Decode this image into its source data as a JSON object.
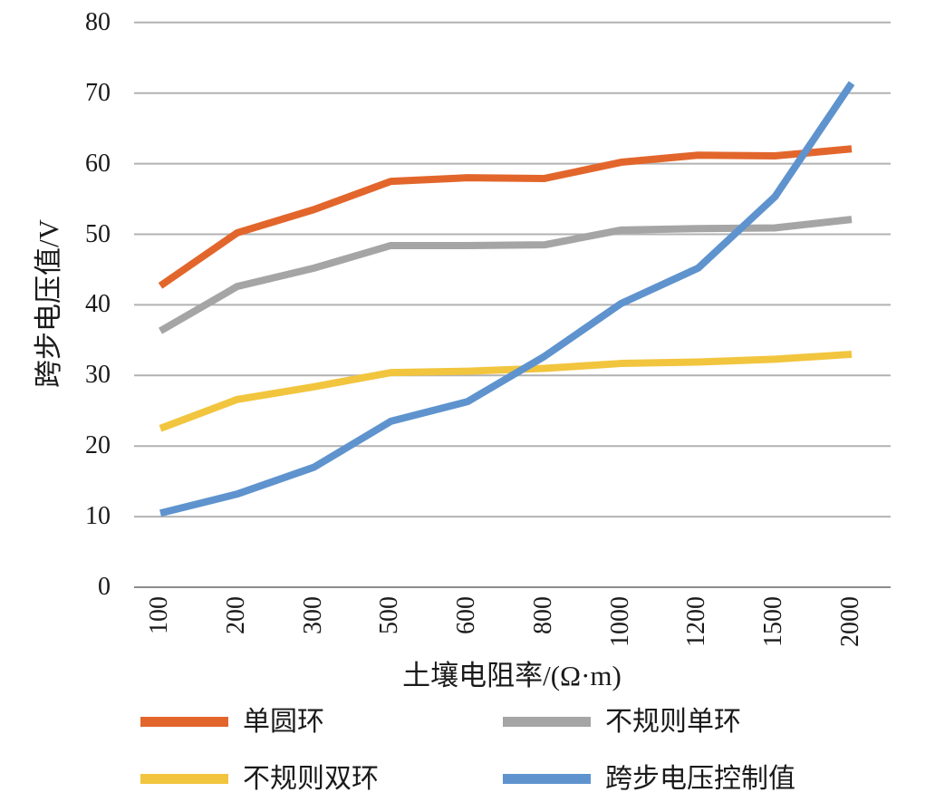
{
  "chart_data": {
    "type": "line",
    "title": "",
    "xlabel": "土壤电阻率/(Ω·m)",
    "ylabel": "跨步电压值/V",
    "categories": [
      "100",
      "200",
      "300",
      "500",
      "600",
      "800",
      "1000",
      "1200",
      "1500",
      "2000"
    ],
    "yticks": [
      0,
      10,
      20,
      30,
      40,
      50,
      60,
      70,
      80
    ],
    "ylim": [
      0,
      80
    ],
    "grid": true,
    "legend_position": "bottom",
    "gridline_color": "#b2b2b2",
    "axis_line_color": "#8c8c8c",
    "text_color": "#1a1a1a",
    "series": [
      {
        "name": "单圆环",
        "color": "#E2662C",
        "values": [
          42.7,
          50.2,
          53.5,
          57.5,
          58.0,
          57.9,
          60.2,
          61.2,
          61.1,
          62.1
        ]
      },
      {
        "name": "不规则单环",
        "color": "#A5A5A5",
        "values": [
          36.3,
          42.6,
          45.2,
          48.4,
          48.4,
          48.5,
          50.6,
          50.8,
          50.9,
          52.1
        ]
      },
      {
        "name": "不规则双环",
        "color": "#F2C53E",
        "values": [
          22.5,
          26.6,
          28.4,
          30.4,
          30.6,
          31.0,
          31.7,
          31.9,
          32.3,
          33.0
        ]
      },
      {
        "name": "跨步电压控制值",
        "color": "#5E93CE",
        "values": [
          10.5,
          13.2,
          17.0,
          23.5,
          26.3,
          32.7,
          40.2,
          45.2,
          55.3,
          71.4
        ]
      }
    ]
  }
}
